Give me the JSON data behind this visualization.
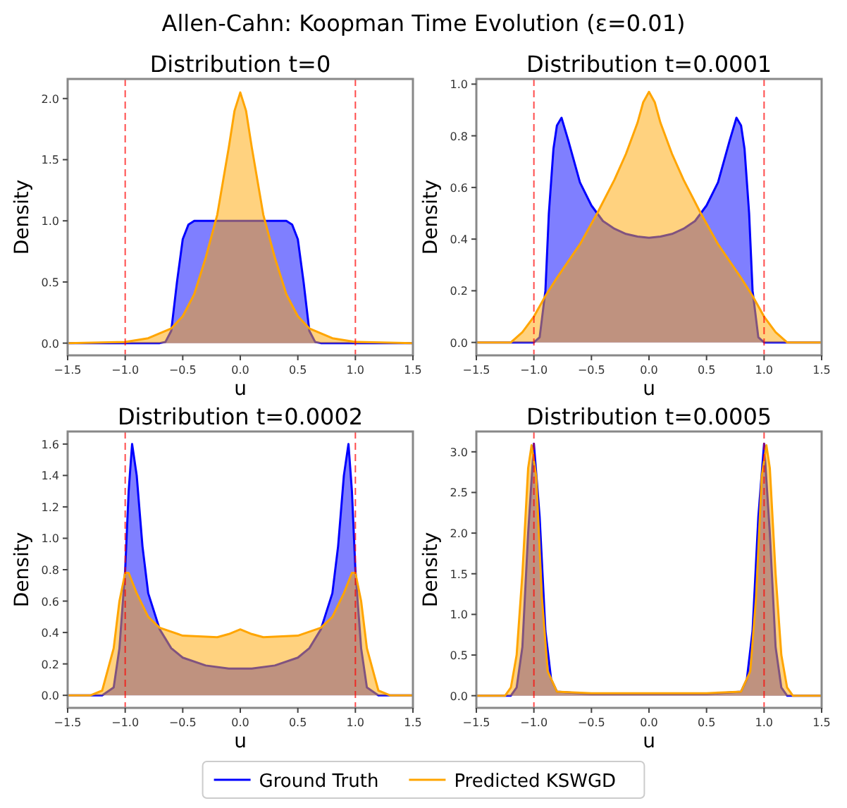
{
  "chart_data": [
    {
      "type": "other",
      "title": "Allen-Cahn: Koopman Time Evolution (ε=0.01)"
    },
    {
      "type": "area",
      "title": "Distribution t=0",
      "xlabel": "u",
      "ylabel": "Density",
      "legend": "bottom",
      "xlim": [
        -1.5,
        1.5
      ],
      "xticks": [
        {
          "value": -1.5,
          "label": "−1.5"
        },
        {
          "value": -1,
          "label": "−1.0"
        },
        {
          "value": -0.5,
          "label": "−0.5"
        },
        {
          "value": 0,
          "label": "0.0"
        },
        {
          "value": 0.5,
          "label": "0.5"
        },
        {
          "value": 1,
          "label": "1.0"
        },
        {
          "value": 1.5,
          "label": "1.5"
        }
      ],
      "ylim": [
        -0.1,
        2.16
      ],
      "yticks": [
        {
          "value": 0,
          "label": "0.0"
        },
        {
          "value": 0.5,
          "label": "0.5"
        },
        {
          "value": 1,
          "label": "1.0"
        },
        {
          "value": 1.5,
          "label": "1.5"
        },
        {
          "value": 2,
          "label": "2.0"
        }
      ],
      "grid": false,
      "ref_lines": [
        {
          "axis": "x",
          "value": -1,
          "color": "#ff0000",
          "line_style": "dashed"
        },
        {
          "axis": "x",
          "value": 1,
          "color": "#ff0000",
          "line_style": "dashed"
        }
      ],
      "series": [
        {
          "name": "Ground Truth",
          "color": "#0000ff",
          "x": [
            -1.5,
            -0.7,
            -0.65,
            -0.6,
            -0.55,
            -0.5,
            -0.45,
            -0.4,
            -0.3,
            0,
            0.3,
            0.4,
            0.45,
            0.5,
            0.55,
            0.6,
            0.65,
            0.7,
            1.5
          ],
          "values": [
            0,
            0,
            0.01,
            0.1,
            0.5,
            0.85,
            0.97,
            1.0,
            1.0,
            1.0,
            1.0,
            1.0,
            0.97,
            0.85,
            0.5,
            0.1,
            0.01,
            0,
            0
          ]
        },
        {
          "name": "Predicted KSWGD",
          "color": "#ffa500",
          "x": [
            -1.5,
            -1.0,
            -0.8,
            -0.6,
            -0.5,
            -0.4,
            -0.3,
            -0.2,
            -0.1,
            -0.05,
            0,
            0.05,
            0.1,
            0.2,
            0.3,
            0.4,
            0.5,
            0.6,
            0.8,
            1.0,
            1.5
          ],
          "values": [
            0,
            0.01,
            0.04,
            0.12,
            0.22,
            0.4,
            0.7,
            1.05,
            1.6,
            1.9,
            2.05,
            1.9,
            1.6,
            1.05,
            0.7,
            0.4,
            0.22,
            0.12,
            0.04,
            0.01,
            0
          ]
        }
      ]
    },
    {
      "type": "area",
      "title": "Distribution t=0.0001",
      "xlabel": "u",
      "ylabel": "Density",
      "xlim": [
        -1.5,
        1.5
      ],
      "xticks": [
        {
          "value": -1.5,
          "label": "−1.5"
        },
        {
          "value": -1,
          "label": "−1.0"
        },
        {
          "value": -0.5,
          "label": "−0.5"
        },
        {
          "value": 0,
          "label": "0.0"
        },
        {
          "value": 0.5,
          "label": "0.5"
        },
        {
          "value": 1,
          "label": "1.0"
        },
        {
          "value": 1.5,
          "label": "1.5"
        }
      ],
      "ylim": [
        -0.05,
        1.02
      ],
      "yticks": [
        {
          "value": 0,
          "label": "0.0"
        },
        {
          "value": 0.2,
          "label": "0.2"
        },
        {
          "value": 0.4,
          "label": "0.4"
        },
        {
          "value": 0.6,
          "label": "0.6"
        },
        {
          "value": 0.8,
          "label": "0.8"
        },
        {
          "value": 1,
          "label": "1.0"
        }
      ],
      "grid": false,
      "ref_lines": [
        {
          "axis": "x",
          "value": -1,
          "color": "#ff0000",
          "line_style": "dashed"
        },
        {
          "axis": "x",
          "value": 1,
          "color": "#ff0000",
          "line_style": "dashed"
        }
      ],
      "series": [
        {
          "color": "#0000ff",
          "x": [
            -1.5,
            -1.0,
            -0.95,
            -0.9,
            -0.87,
            -0.83,
            -0.8,
            -0.76,
            -0.7,
            -0.6,
            -0.5,
            -0.4,
            -0.3,
            -0.2,
            -0.1,
            0,
            0.1,
            0.2,
            0.3,
            0.4,
            0.5,
            0.6,
            0.7,
            0.76,
            0.8,
            0.83,
            0.87,
            0.9,
            0.95,
            1.0,
            1.5
          ],
          "values": [
            0,
            0,
            0.02,
            0.2,
            0.5,
            0.75,
            0.84,
            0.87,
            0.78,
            0.62,
            0.53,
            0.47,
            0.44,
            0.42,
            0.41,
            0.405,
            0.41,
            0.42,
            0.44,
            0.47,
            0.53,
            0.62,
            0.78,
            0.87,
            0.84,
            0.75,
            0.5,
            0.2,
            0.02,
            0,
            0
          ]
        },
        {
          "color": "#ffa500",
          "x": [
            -1.5,
            -1.2,
            -1.1,
            -1.0,
            -0.9,
            -0.8,
            -0.6,
            -0.45,
            -0.3,
            -0.2,
            -0.1,
            -0.05,
            0,
            0.05,
            0.1,
            0.2,
            0.3,
            0.45,
            0.6,
            0.8,
            0.9,
            1.0,
            1.1,
            1.2,
            1.5
          ],
          "values": [
            0,
            0,
            0.04,
            0.1,
            0.18,
            0.25,
            0.38,
            0.5,
            0.63,
            0.73,
            0.85,
            0.93,
            0.97,
            0.93,
            0.85,
            0.73,
            0.63,
            0.5,
            0.38,
            0.25,
            0.18,
            0.1,
            0.04,
            0,
            0
          ]
        }
      ]
    },
    {
      "type": "area",
      "title": "Distribution t=0.0002",
      "xlabel": "u",
      "ylabel": "Density",
      "xlim": [
        -1.5,
        1.5
      ],
      "xticks": [
        {
          "value": -1.5,
          "label": "−1.5"
        },
        {
          "value": -1,
          "label": "−1.0"
        },
        {
          "value": -0.5,
          "label": "−0.5"
        },
        {
          "value": 0,
          "label": "0.0"
        },
        {
          "value": 0.5,
          "label": "0.5"
        },
        {
          "value": 1,
          "label": "1.0"
        },
        {
          "value": 1.5,
          "label": "1.5"
        }
      ],
      "ylim": [
        -0.08,
        1.68
      ],
      "yticks": [
        {
          "value": 0,
          "label": "0.0"
        },
        {
          "value": 0.2,
          "label": "0.2"
        },
        {
          "value": 0.4,
          "label": "0.4"
        },
        {
          "value": 0.6,
          "label": "0.6"
        },
        {
          "value": 0.8,
          "label": "0.8"
        },
        {
          "value": 1,
          "label": "1.0"
        },
        {
          "value": 1.2,
          "label": "1.2"
        },
        {
          "value": 1.4,
          "label": "1.4"
        },
        {
          "value": 1.6,
          "label": "1.6"
        }
      ],
      "grid": false,
      "ref_lines": [
        {
          "axis": "x",
          "value": -1,
          "color": "#ff0000",
          "line_style": "dashed"
        },
        {
          "axis": "x",
          "value": 1,
          "color": "#ff0000",
          "line_style": "dashed"
        }
      ],
      "series": [
        {
          "color": "#0000ff",
          "x": [
            -1.5,
            -1.2,
            -1.1,
            -1.05,
            -1.0,
            -0.97,
            -0.94,
            -0.9,
            -0.85,
            -0.8,
            -0.7,
            -0.6,
            -0.5,
            -0.3,
            -0.1,
            0,
            0.1,
            0.3,
            0.5,
            0.6,
            0.7,
            0.8,
            0.85,
            0.9,
            0.94,
            0.97,
            1.0,
            1.05,
            1.1,
            1.2,
            1.5
          ],
          "values": [
            0,
            0,
            0.05,
            0.3,
            0.8,
            1.3,
            1.6,
            1.4,
            0.95,
            0.65,
            0.42,
            0.3,
            0.24,
            0.19,
            0.17,
            0.17,
            0.17,
            0.19,
            0.24,
            0.3,
            0.42,
            0.65,
            0.95,
            1.4,
            1.6,
            1.3,
            0.8,
            0.3,
            0.05,
            0,
            0
          ]
        },
        {
          "color": "#ffa500",
          "x": [
            -1.5,
            -1.3,
            -1.2,
            -1.1,
            -1.05,
            -1.0,
            -0.97,
            -0.9,
            -0.8,
            -0.7,
            -0.5,
            -0.2,
            -0.1,
            0,
            0.1,
            0.2,
            0.5,
            0.7,
            0.8,
            0.9,
            0.97,
            1.0,
            1.05,
            1.1,
            1.2,
            1.3,
            1.5
          ],
          "values": [
            0,
            0,
            0.03,
            0.3,
            0.6,
            0.78,
            0.78,
            0.65,
            0.5,
            0.43,
            0.38,
            0.37,
            0.39,
            0.42,
            0.39,
            0.37,
            0.38,
            0.43,
            0.5,
            0.65,
            0.78,
            0.78,
            0.6,
            0.3,
            0.03,
            0,
            0
          ]
        }
      ]
    },
    {
      "type": "area",
      "title": "Distribution t=0.0005",
      "xlabel": "u",
      "ylabel": "Density",
      "xlim": [
        -1.5,
        1.5
      ],
      "xticks": [
        {
          "value": -1.5,
          "label": "−1.5"
        },
        {
          "value": -1,
          "label": "−1.0"
        },
        {
          "value": -0.5,
          "label": "−0.5"
        },
        {
          "value": 0,
          "label": "0.0"
        },
        {
          "value": 0.5,
          "label": "0.5"
        },
        {
          "value": 1,
          "label": "1.0"
        },
        {
          "value": 1.5,
          "label": "1.5"
        }
      ],
      "ylim": [
        -0.15,
        3.25
      ],
      "yticks": [
        {
          "value": 0,
          "label": "0.0"
        },
        {
          "value": 0.5,
          "label": "0.5"
        },
        {
          "value": 1,
          "label": "1.0"
        },
        {
          "value": 1.5,
          "label": "1.5"
        },
        {
          "value": 2,
          "label": "2.0"
        },
        {
          "value": 2.5,
          "label": "2.5"
        },
        {
          "value": 3,
          "label": "3.0"
        }
      ],
      "grid": false,
      "ref_lines": [
        {
          "axis": "x",
          "value": -1,
          "color": "#ff0000",
          "line_style": "dashed"
        },
        {
          "axis": "x",
          "value": 1,
          "color": "#ff0000",
          "line_style": "dashed"
        }
      ],
      "series": [
        {
          "color": "#0000ff",
          "x": [
            -1.5,
            -1.2,
            -1.15,
            -1.1,
            -1.05,
            -1.0,
            -0.95,
            -0.9,
            -0.85,
            -0.8,
            -0.5,
            0,
            0.5,
            0.8,
            0.85,
            0.9,
            0.95,
            1.0,
            1.05,
            1.1,
            1.15,
            1.2,
            1.5
          ],
          "values": [
            0,
            0,
            0.1,
            0.6,
            2.0,
            3.1,
            2.2,
            0.8,
            0.2,
            0.05,
            0.02,
            0.02,
            0.02,
            0.05,
            0.2,
            0.8,
            2.2,
            3.1,
            2.0,
            0.6,
            0.1,
            0,
            0
          ]
        },
        {
          "color": "#ffa500",
          "x": [
            -1.5,
            -1.25,
            -1.2,
            -1.15,
            -1.1,
            -1.05,
            -1.02,
            -0.98,
            -0.93,
            -0.88,
            -0.8,
            -0.5,
            0,
            0.5,
            0.8,
            0.88,
            0.93,
            0.98,
            1.02,
            1.05,
            1.1,
            1.15,
            1.2,
            1.25,
            1.5
          ],
          "values": [
            0,
            0,
            0.1,
            0.5,
            1.5,
            2.8,
            3.08,
            2.7,
            1.2,
            0.3,
            0.05,
            0.03,
            0.03,
            0.03,
            0.05,
            0.3,
            1.2,
            2.7,
            3.08,
            2.8,
            1.5,
            0.5,
            0.1,
            0,
            0
          ]
        }
      ]
    }
  ]
}
